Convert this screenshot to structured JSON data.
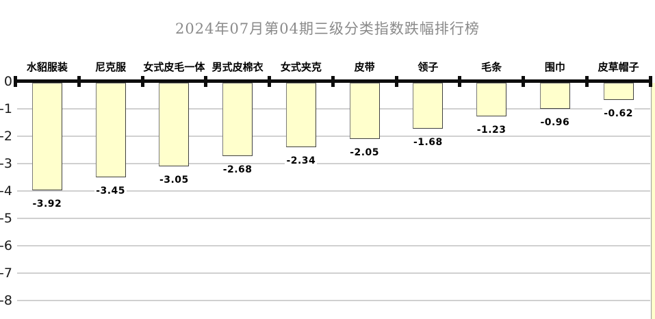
{
  "title": {
    "text": "2024年07月第04期三级分类指数跌幅排行榜",
    "color": "#8A8A8A"
  },
  "chart_data": {
    "type": "bar",
    "title": "2024年07月第04期三级分类指数跌幅排行榜",
    "categories": [
      "水貂服装",
      "尼克服",
      "女式皮毛一体",
      "男式皮棉衣",
      "女式夹克",
      "皮带",
      "领子",
      "毛条",
      "围巾",
      "皮草帽子"
    ],
    "values": [
      -3.92,
      -3.45,
      -3.05,
      -2.68,
      -2.34,
      -2.05,
      -1.68,
      -1.23,
      -0.96,
      -0.62
    ],
    "value_labels": [
      "-3.92",
      "-3.45",
      "-3.05",
      "-2.68",
      "-2.34",
      "-2.05",
      "-1.68",
      "-1.23",
      "-0.96",
      "-0.62"
    ],
    "xlabel": "",
    "ylabel": "",
    "ylim": [
      -8,
      0
    ],
    "ytick_labels": [
      "0",
      "-1",
      "-2",
      "-3",
      "-4",
      "-5",
      "-6",
      "-7",
      "-8"
    ],
    "grid": true,
    "legend": false,
    "bar_orientation": "vertical-downward",
    "category_label_position": "above-axis",
    "value_label_position": "below-bar",
    "colors": {
      "bar_fill": "#FFFFCC",
      "bar_border": "#5A5A5A",
      "gridline": "#D0D0D0",
      "axis": "#0D0D0D",
      "title": "#8A8A8A",
      "labels": "#000000",
      "background": "#FFFFFF"
    }
  }
}
